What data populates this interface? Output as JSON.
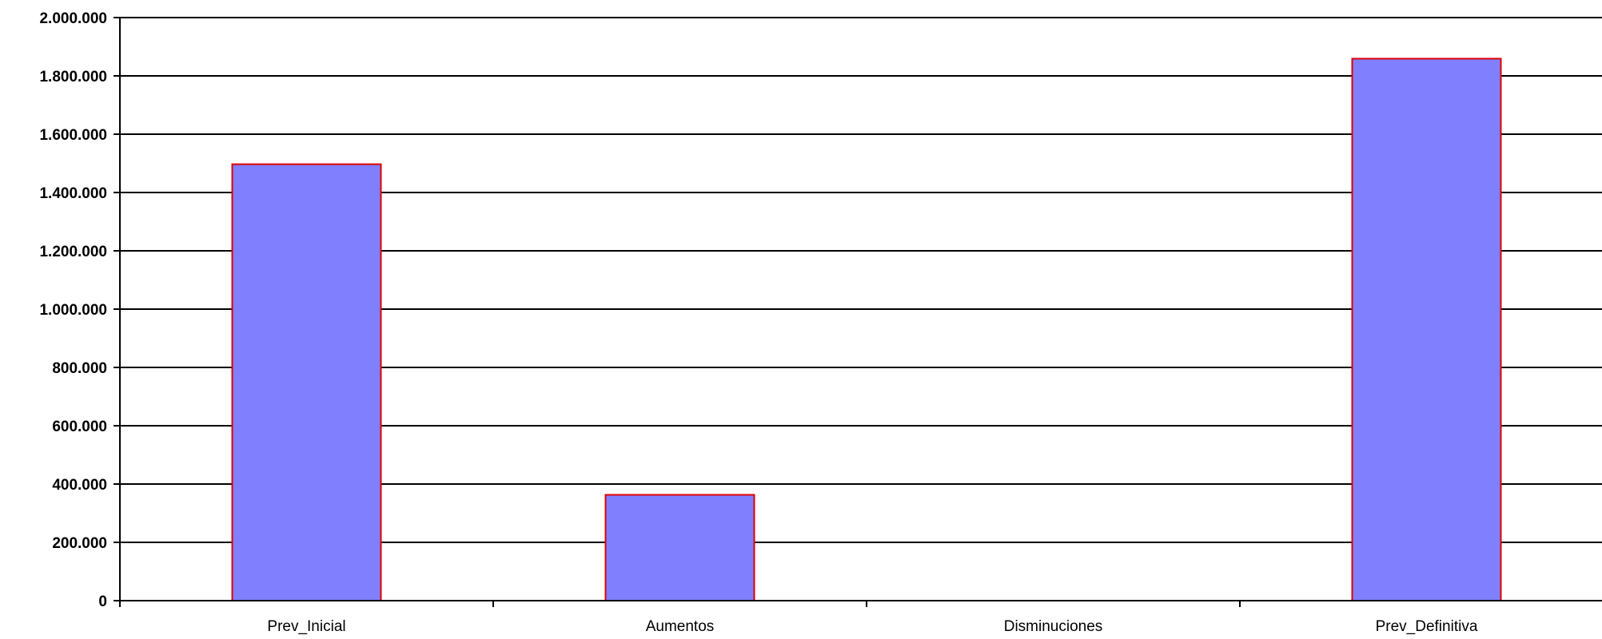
{
  "chart_data": {
    "type": "bar",
    "title": "",
    "xlabel": "",
    "ylabel": "",
    "categories": [
      "Prev_Inicial",
      "Aumentos",
      "Disminuciones",
      "Prev_Definitiva"
    ],
    "values": [
      1497000,
      363000,
      0,
      1859000
    ],
    "ylim": [
      0,
      2000000
    ],
    "y_ticks": [
      {
        "value": 0,
        "label": "0"
      },
      {
        "value": 200000,
        "label": "200.000"
      },
      {
        "value": 400000,
        "label": "400.000"
      },
      {
        "value": 600000,
        "label": "600.000"
      },
      {
        "value": 800000,
        "label": "800.000"
      },
      {
        "value": 1000000,
        "label": "1.000.000"
      },
      {
        "value": 1200000,
        "label": "1.200.000"
      },
      {
        "value": 1400000,
        "label": "1.400.000"
      },
      {
        "value": 1600000,
        "label": "1.600.000"
      },
      {
        "value": 1800000,
        "label": "1.800.000"
      },
      {
        "value": 2000000,
        "label": "2.000.000"
      }
    ],
    "grid": true,
    "legend": "none",
    "colors": {
      "bar_fill": "#8080FF",
      "bar_stroke": "#E00000",
      "grid": "#000000",
      "axis": "#000000",
      "background": "#FFFFFF"
    }
  }
}
